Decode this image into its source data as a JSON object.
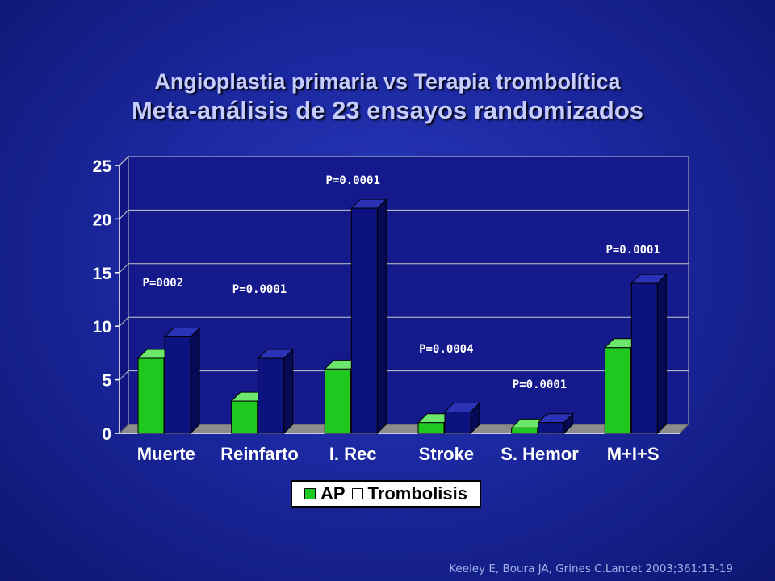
{
  "title": {
    "line1": "Angioplastia primaria vs Terapia trombolítica",
    "line2": "Meta-análisis de 23 ensayos randomizados"
  },
  "citation": "Keeley E, Boura JA, Grines C.Lancet 2003;361:13-19",
  "chart_data": {
    "type": "bar",
    "categories": [
      "Muerte",
      "Reinfarto",
      "I. Rec",
      "Stroke",
      "S. Hemor",
      "M+I+S"
    ],
    "series": [
      {
        "name": "AP",
        "values": [
          7,
          3,
          6,
          1,
          0.5,
          8
        ],
        "color": "#1ec81e"
      },
      {
        "name": "Trombolisis",
        "values": [
          9,
          7,
          21,
          2,
          1,
          14
        ],
        "color": "#0c1380"
      }
    ],
    "annotations": [
      "P=0002",
      "P=0.0001",
      "P=0.0001",
      "P=0.0004",
      "P=0.0001",
      "P=0.0001"
    ],
    "ylim": [
      0,
      25
    ],
    "yticks": [
      0,
      5,
      10,
      15,
      20,
      25
    ],
    "grid": true,
    "legend": "bottom",
    "plot_background": "#14198c"
  }
}
